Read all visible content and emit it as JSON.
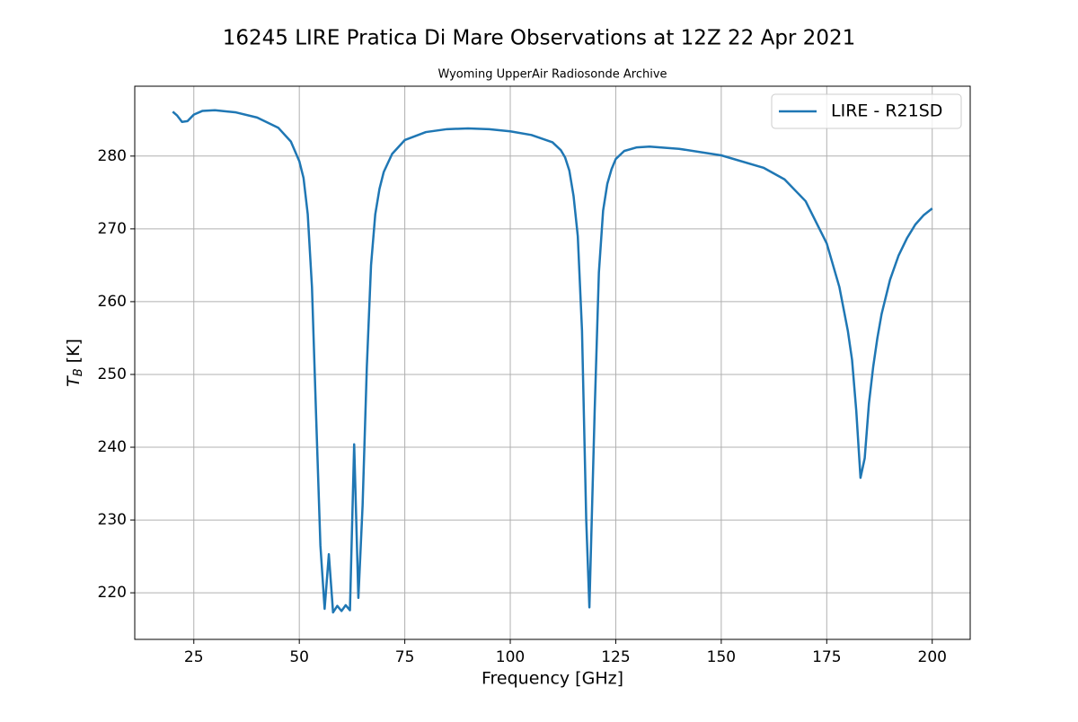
{
  "chart_data": {
    "type": "line",
    "title": "16245 LIRE Pratica Di Mare Observations at 12Z 22 Apr 2021",
    "subtitle": "Wyoming UpperAir Radiosonde Archive",
    "xlabel": "Frequency [GHz]",
    "ylabel": {
      "symbol": "T",
      "subscript": "B",
      "unit": "[K]"
    },
    "x": [
      20,
      21,
      22.2,
      23.5,
      25,
      27,
      30,
      35,
      40,
      45,
      48,
      50,
      51,
      52,
      53,
      54,
      55,
      56,
      57,
      58,
      59,
      60,
      61,
      62,
      63,
      64,
      65,
      66,
      67,
      68,
      69,
      70,
      72,
      75,
      80,
      85,
      90,
      95,
      100,
      105,
      110,
      112,
      113,
      114,
      115,
      116,
      117,
      118,
      118.75,
      120,
      121,
      122,
      123,
      124,
      125,
      127,
      130,
      133,
      140,
      150,
      160,
      165,
      170,
      175,
      178,
      180,
      181,
      182,
      183,
      184,
      185,
      186,
      187,
      188,
      190,
      192,
      194,
      196,
      198,
      200
    ],
    "series": [
      {
        "name": "LIRE - R21SD",
        "color": "#1f77b4",
        "values": [
          286.1,
          285.6,
          284.7,
          284.8,
          285.7,
          286.2,
          286.3,
          286.0,
          285.3,
          283.9,
          282.0,
          279.3,
          277,
          272,
          262,
          244,
          226.5,
          217.8,
          225.3,
          217.3,
          218.2,
          217.5,
          218.3,
          217.6,
          240.4,
          219.3,
          232,
          251,
          265,
          272,
          275.5,
          277.8,
          280.3,
          282.2,
          283.3,
          283.7,
          283.8,
          283.7,
          283.4,
          282.9,
          281.9,
          280.8,
          279.8,
          278,
          274.5,
          269,
          256,
          230,
          218.0,
          245,
          264,
          272.5,
          276.2,
          278.2,
          279.6,
          280.7,
          281.2,
          281.3,
          281,
          280.1,
          278.4,
          276.8,
          273.8,
          268,
          262,
          256,
          252,
          245,
          235.8,
          238.5,
          246,
          251,
          255,
          258.3,
          263,
          266.3,
          268.7,
          270.6,
          271.9,
          272.8
        ]
      }
    ],
    "xlim": [
      11,
      209
    ],
    "ylim": [
      213.6,
      289.6
    ],
    "xticks": [
      25,
      50,
      75,
      100,
      125,
      150,
      175,
      200
    ],
    "yticks": [
      220,
      230,
      240,
      250,
      260,
      270,
      280
    ],
    "grid": true,
    "legend": "upper right"
  }
}
